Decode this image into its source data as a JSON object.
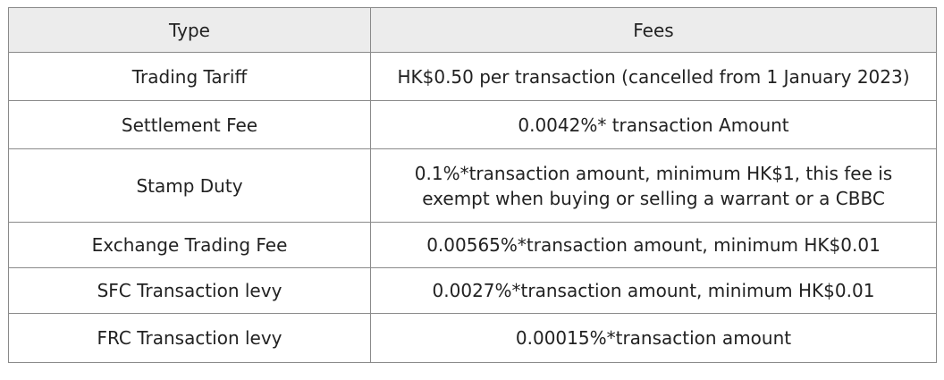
{
  "table": {
    "headers": {
      "type": "Type",
      "fees": "Fees"
    },
    "rows": [
      {
        "type": "Trading Tariff",
        "fees": "HK$0.50 per transaction (cancelled from 1 January 2023)"
      },
      {
        "type": "Settlement Fee",
        "fees": "0.0042%* transaction Amount"
      },
      {
        "type": "Stamp Duty",
        "fees_line1": "0.1%*transaction amount, minimum HK$1, this fee is",
        "fees_line2": "exempt when buying or selling a warrant or a CBBC"
      },
      {
        "type": "Exchange Trading Fee",
        "fees": "0.00565%*transaction amount, minimum HK$0.01"
      },
      {
        "type": "SFC Transaction levy",
        "fees": "0.0027%*transaction amount, minimum HK$0.01"
      },
      {
        "type": "FRC Transaction levy",
        "fees": "0.00015%*transaction amount"
      }
    ]
  }
}
